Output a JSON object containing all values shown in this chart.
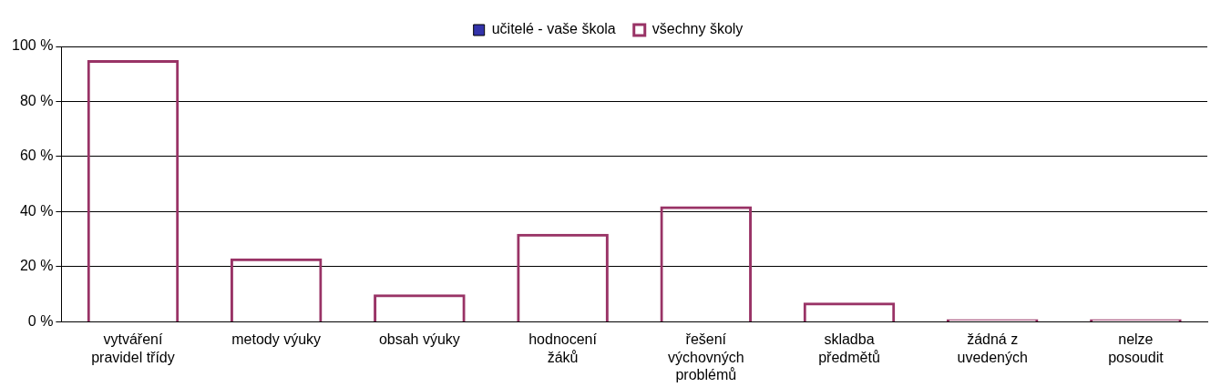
{
  "chart_data": {
    "type": "bar",
    "categories": [
      "vytváření\npravidel třídy",
      "metody výuky",
      "obsah výuky",
      "hodnocení\nžáků",
      "řešení\nvýchovných\nproblémů",
      "skladba\npředmětů",
      "žádná z\nuvedených",
      "nelze\nposoudit"
    ],
    "series": [
      {
        "name": "učitelé - vaše škola",
        "color": "#3333aa",
        "values": [
          null,
          null,
          null,
          null,
          null,
          null,
          null,
          null
        ]
      },
      {
        "name": "všechny školy",
        "color": "#993366",
        "values": [
          95,
          23,
          10,
          32,
          42,
          7,
          1,
          1
        ]
      }
    ],
    "ylim": [
      0,
      100
    ],
    "yticks": [
      {
        "value": 0,
        "label": "0 %"
      },
      {
        "value": 20,
        "label": "20 %"
      },
      {
        "value": 40,
        "label": "40 %"
      },
      {
        "value": 60,
        "label": "60 %"
      },
      {
        "value": 80,
        "label": "80 %"
      },
      {
        "value": 100,
        "label": "100 %"
      }
    ],
    "grid": "y",
    "legend": "top"
  }
}
